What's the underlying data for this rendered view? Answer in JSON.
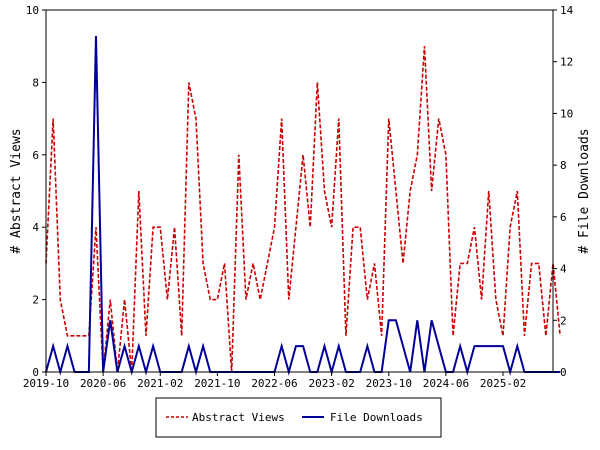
{
  "chart_data": {
    "type": "line",
    "title": "",
    "xlabel": "",
    "ylabel_left": "# Abstract Views",
    "ylabel_right": "# File Downloads",
    "ylim_left": [
      0,
      10
    ],
    "ylim_right": [
      0,
      14
    ],
    "yticks_left": [
      "0",
      "2",
      "4",
      "6",
      "8",
      "10"
    ],
    "yticks_right": [
      "0",
      "2",
      "4",
      "6",
      "8",
      "10",
      "12",
      "14"
    ],
    "x_ticks": [
      "2019-10",
      "2020-06",
      "2021-02",
      "2021-10",
      "2022-06",
      "2023-02",
      "2023-10",
      "2024-06",
      "2025-02"
    ],
    "x_start": "2019-10",
    "x_end": "2025-09",
    "grid": false,
    "legend_position": "bottom",
    "series": [
      {
        "name": "Abstract Views",
        "axis": "left",
        "color": "#cc0000",
        "style": "dashed",
        "values": [
          3,
          7,
          2,
          1,
          1,
          1,
          1,
          4,
          0,
          2,
          0,
          2,
          0,
          5,
          1,
          4,
          4,
          2,
          4,
          1,
          8,
          7,
          3,
          2,
          2,
          3,
          0,
          6,
          2,
          3,
          2,
          3,
          4,
          7,
          2,
          4,
          6,
          4,
          8,
          5,
          4,
          7,
          1,
          4,
          4,
          2,
          3,
          1,
          7,
          5,
          3,
          5,
          6,
          9,
          5,
          7,
          6,
          1,
          3,
          3,
          4,
          2,
          5,
          2,
          1,
          4,
          5,
          1,
          3,
          3,
          1,
          3,
          1
        ]
      },
      {
        "name": "File Downloads",
        "axis": "right",
        "color": "#000099",
        "style": "solid",
        "values": [
          0,
          1,
          0,
          1,
          0,
          0,
          0,
          13,
          0,
          2,
          0,
          1,
          0,
          1,
          0,
          1,
          0,
          0,
          0,
          0,
          1,
          0,
          1,
          0,
          0,
          0,
          0,
          0,
          0,
          0,
          0,
          0,
          0,
          1,
          0,
          1,
          1,
          0,
          0,
          1,
          0,
          1,
          0,
          0,
          0,
          1,
          0,
          0,
          2,
          2,
          1,
          0,
          2,
          0,
          2,
          1,
          0,
          0,
          1,
          0,
          1,
          1,
          1,
          1,
          1,
          0,
          1,
          0,
          0,
          0,
          0,
          0,
          0
        ]
      }
    ]
  }
}
